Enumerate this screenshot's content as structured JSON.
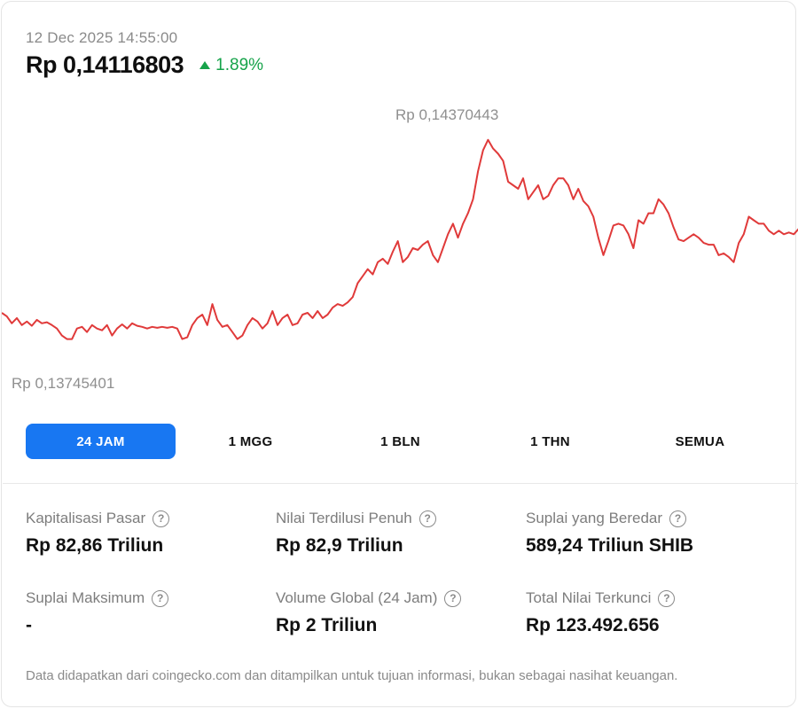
{
  "header": {
    "timestamp": "12 Dec 2025 14:55:00",
    "price": "Rp 0,14116803",
    "change": "1.89%",
    "change_direction": "up"
  },
  "colors": {
    "line": "#e03a3a",
    "positive": "#16a34a",
    "active_tab": "#1877f2"
  },
  "chart": {
    "high_label": "Rp 0,14370443",
    "low_label": "Rp 0,13745401"
  },
  "chart_data": {
    "type": "line",
    "title": "",
    "ylim": [
      0.137,
      0.1441
    ],
    "y": [
      0.13875,
      0.13865,
      0.13845,
      0.1386,
      0.1384,
      0.1385,
      0.13838,
      0.13855,
      0.13845,
      0.13848,
      0.1384,
      0.1383,
      0.1381,
      0.138,
      0.138,
      0.1383,
      0.13835,
      0.1382,
      0.1384,
      0.1383,
      0.13825,
      0.1384,
      0.1381,
      0.1383,
      0.13842,
      0.1383,
      0.13845,
      0.13838,
      0.13835,
      0.1383,
      0.13835,
      0.13832,
      0.13835,
      0.13832,
      0.13835,
      0.1383,
      0.138,
      0.13805,
      0.1384,
      0.1386,
      0.1387,
      0.1384,
      0.139,
      0.13855,
      0.13835,
      0.1384,
      0.1382,
      0.138,
      0.1381,
      0.1384,
      0.1386,
      0.1385,
      0.1383,
      0.13845,
      0.1388,
      0.1384,
      0.1386,
      0.1387,
      0.1384,
      0.13845,
      0.1387,
      0.13875,
      0.1386,
      0.1388,
      0.1386,
      0.1387,
      0.1389,
      0.139,
      0.13895,
      0.13905,
      0.1392,
      0.1396,
      0.1398,
      0.14,
      0.13985,
      0.1402,
      0.1403,
      0.14015,
      0.1405,
      0.1408,
      0.1402,
      0.14035,
      0.1406,
      0.14055,
      0.1407,
      0.1408,
      0.1404,
      0.1402,
      0.1406,
      0.141,
      0.1413,
      0.1409,
      0.1413,
      0.1416,
      0.142,
      0.1428,
      0.1434,
      0.1437,
      0.14345,
      0.1433,
      0.1431,
      0.1425,
      0.1424,
      0.1423,
      0.1426,
      0.142,
      0.1422,
      0.1424,
      0.142,
      0.1421,
      0.1424,
      0.1426,
      0.1426,
      0.1424,
      0.142,
      0.1423,
      0.14195,
      0.1418,
      0.1415,
      0.1409,
      0.1404,
      0.1408,
      0.14125,
      0.1413,
      0.14125,
      0.141,
      0.1406,
      0.1414,
      0.1413,
      0.1416,
      0.1416,
      0.142,
      0.14185,
      0.1416,
      0.1412,
      0.14085,
      0.1408,
      0.1409,
      0.141,
      0.1409,
      0.14075,
      0.1407,
      0.1407,
      0.1404,
      0.14045,
      0.14035,
      0.1402,
      0.14075,
      0.141,
      0.1415,
      0.1414,
      0.1413,
      0.1413,
      0.1411,
      0.141,
      0.1411,
      0.141,
      0.14105,
      0.141,
      0.14116
    ],
    "y_min_value": 0.13745401,
    "y_max_value": 0.14370443,
    "grid": false,
    "legend": "none"
  },
  "ranges": {
    "items": [
      "24 JAM",
      "1 MGG",
      "1 BLN",
      "1 THN",
      "SEMUA"
    ],
    "active": "24 JAM"
  },
  "stats": [
    {
      "label": "Kapitalisasi Pasar",
      "value": "Rp 82,86 Triliun"
    },
    {
      "label": "Nilai Terdilusi Penuh",
      "value": "Rp 82,9 Triliun"
    },
    {
      "label": "Suplai yang Beredar",
      "value": "589,24 Triliun SHIB"
    },
    {
      "label": "Suplai Maksimum",
      "value": "-"
    },
    {
      "label": "Volume Global (24 Jam)",
      "value": "Rp 2 Triliun"
    },
    {
      "label": "Total Nilai Terkunci",
      "value": "Rp 123.492.656"
    }
  ],
  "help_icon": "?",
  "footer": "Data didapatkan dari coingecko.com dan ditampilkan untuk tujuan informasi, bukan sebagai nasihat keuangan."
}
